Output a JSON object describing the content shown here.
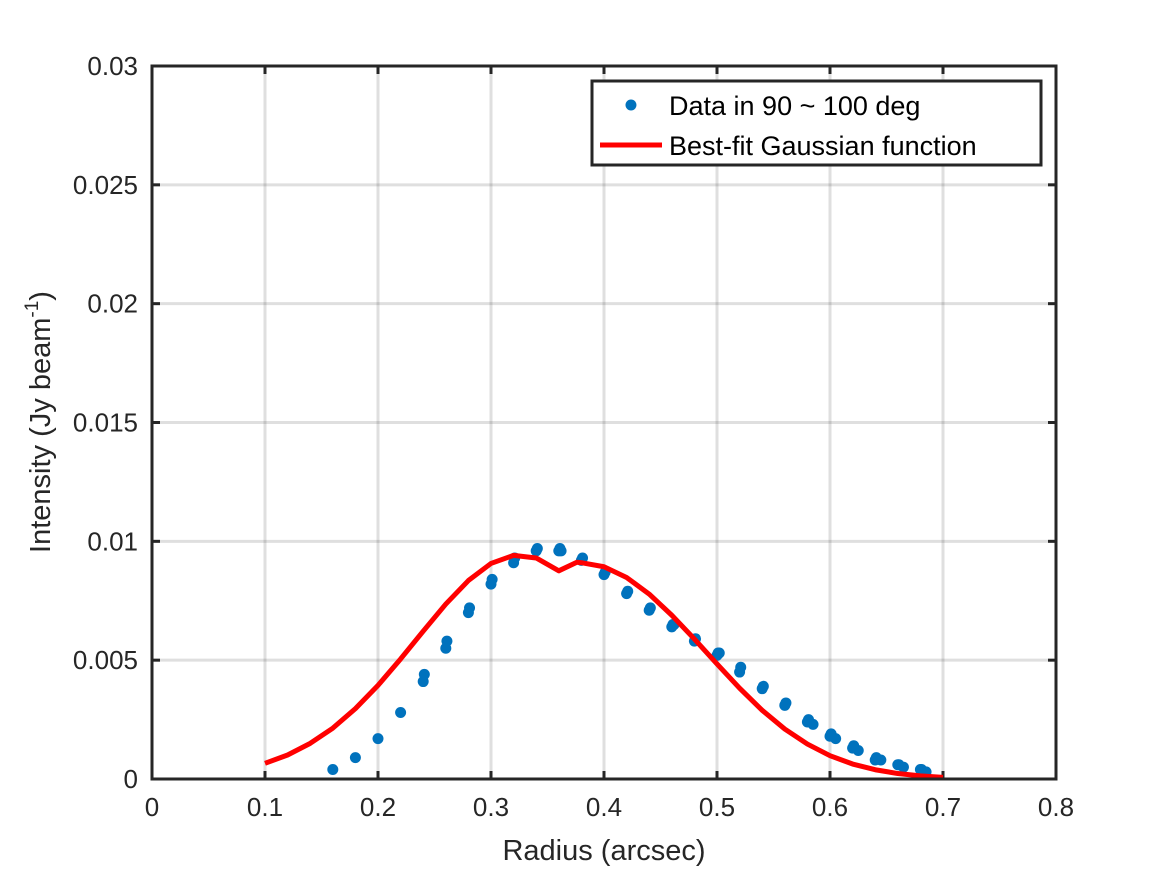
{
  "chart_data": {
    "type": "scatter",
    "xlabel": "Radius (arcsec)",
    "ylabel": "Intensity (Jy beam",
    "ylabel_superscript": "-1",
    "ylabel_suffix": ")",
    "xlim": [
      0,
      0.8
    ],
    "ylim": [
      0,
      0.03
    ],
    "x_ticks": [
      "0",
      "0.1",
      "0.2",
      "0.3",
      "0.4",
      "0.5",
      "0.6",
      "0.7",
      "0.8"
    ],
    "x_tick_values": [
      0,
      0.1,
      0.2,
      0.3,
      0.4,
      0.5,
      0.6,
      0.7,
      0.8
    ],
    "y_ticks": [
      "0",
      "0.005",
      "0.01",
      "0.015",
      "0.02",
      "0.025",
      "0.03"
    ],
    "y_tick_values": [
      0,
      0.005,
      0.01,
      0.015,
      0.02,
      0.025,
      0.03
    ],
    "grid": true,
    "legend_position": "top-right",
    "series": [
      {
        "name": "Data in 90 ~ 100 deg",
        "type": "scatter",
        "color": "#0072BD",
        "x": [
          0.16,
          0.18,
          0.2,
          0.22,
          0.24,
          0.241,
          0.26,
          0.261,
          0.28,
          0.281,
          0.3,
          0.301,
          0.32,
          0.321,
          0.34,
          0.341,
          0.36,
          0.361,
          0.362,
          0.38,
          0.381,
          0.4,
          0.401,
          0.42,
          0.421,
          0.44,
          0.441,
          0.46,
          0.461,
          0.462,
          0.48,
          0.481,
          0.5,
          0.501,
          0.502,
          0.52,
          0.521,
          0.54,
          0.541,
          0.56,
          0.561,
          0.58,
          0.581,
          0.585,
          0.6,
          0.601,
          0.605,
          0.62,
          0.621,
          0.625,
          0.64,
          0.641,
          0.645,
          0.66,
          0.661,
          0.665,
          0.68,
          0.681,
          0.685
        ],
        "y": [
          0.0004,
          0.0009,
          0.0017,
          0.0028,
          0.0041,
          0.0044,
          0.0055,
          0.0058,
          0.007,
          0.0072,
          0.0082,
          0.0084,
          0.0091,
          0.0093,
          0.0096,
          0.0097,
          0.0096,
          0.0097,
          0.0096,
          0.0092,
          0.0093,
          0.0086,
          0.0087,
          0.0078,
          0.0079,
          0.0071,
          0.0072,
          0.0064,
          0.0065,
          0.0065,
          0.0058,
          0.0059,
          0.0052,
          0.0053,
          0.0053,
          0.0045,
          0.0047,
          0.0038,
          0.0039,
          0.0031,
          0.0032,
          0.0024,
          0.0025,
          0.0023,
          0.0018,
          0.0019,
          0.0017,
          0.0013,
          0.0014,
          0.0012,
          0.0008,
          0.0009,
          0.0008,
          0.0006,
          0.0006,
          0.0005,
          0.0004,
          0.0004,
          0.0003
        ]
      },
      {
        "name": "Best-fit Gaussian function",
        "type": "line",
        "color": "#FF0000",
        "x": [
          0.1,
          0.12,
          0.14,
          0.16,
          0.18,
          0.2,
          0.22,
          0.24,
          0.26,
          0.28,
          0.3,
          0.32,
          0.34,
          0.36,
          0.376,
          0.38,
          0.4,
          0.42,
          0.44,
          0.46,
          0.48,
          0.5,
          0.52,
          0.54,
          0.56,
          0.58,
          0.6,
          0.62,
          0.64,
          0.66,
          0.68,
          0.7
        ],
        "y": [
          0.00066,
          0.00101,
          0.0015,
          0.00214,
          0.00296,
          0.00394,
          0.00505,
          0.00622,
          0.00736,
          0.00835,
          0.00907,
          0.00941,
          0.0093,
          0.00876,
          0.00912,
          0.0091,
          0.00893,
          0.00848,
          0.00778,
          0.00689,
          0.00589,
          0.00484,
          0.00382,
          0.00289,
          0.0021,
          0.00147,
          0.00098,
          0.00063,
          0.00039,
          0.00023,
          0.00013,
          7e-05
        ]
      }
    ]
  }
}
